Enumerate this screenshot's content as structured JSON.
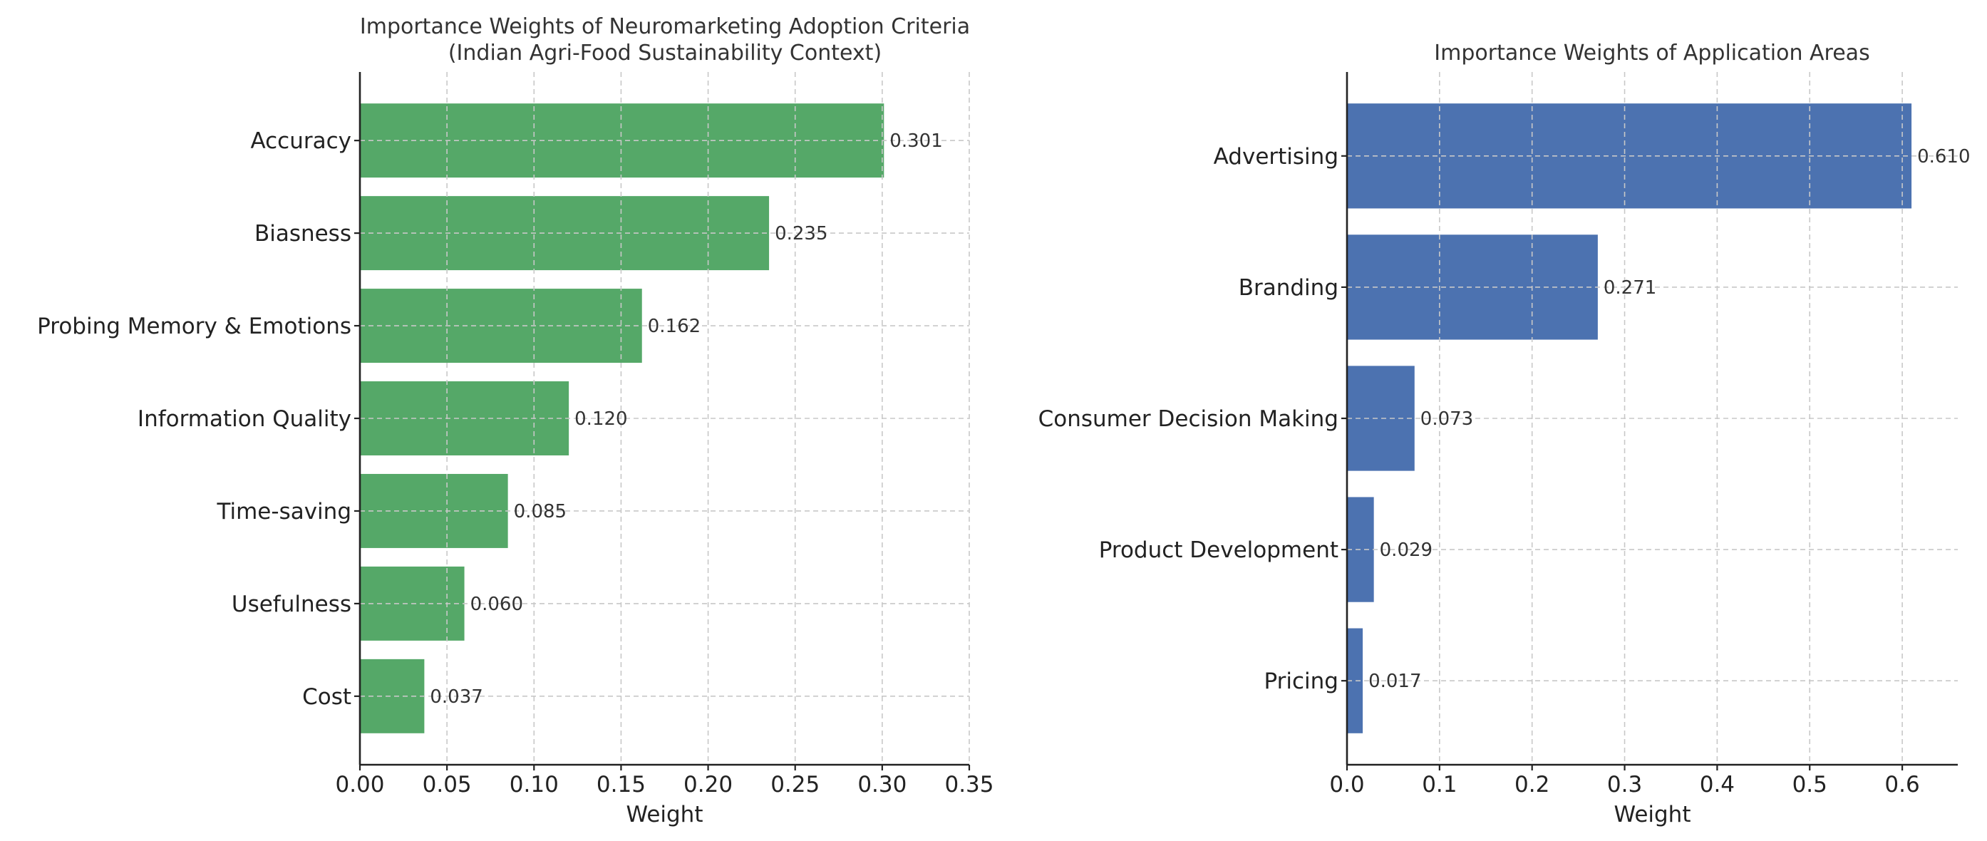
{
  "chart_data": [
    {
      "type": "bar",
      "orientation": "horizontal",
      "title": "Importance Weights of Neuromarketing Adoption Criteria\n(Indian Agri-Food Sustainability Context)",
      "title_lines": [
        "Importance Weights of Neuromarketing Adoption Criteria",
        "(Indian Agri-Food Sustainability Context)"
      ],
      "categories": [
        "Accuracy",
        "Biasness",
        "Probing Memory & Emotions",
        "Information Quality",
        "Time-saving",
        "Usefulness",
        "Cost"
      ],
      "values": [
        0.301,
        0.235,
        0.162,
        0.12,
        0.085,
        0.06,
        0.037
      ],
      "value_labels": [
        "0.301",
        "0.235",
        "0.162",
        "0.120",
        "0.085",
        "0.060",
        "0.037"
      ],
      "xlabel": "Weight",
      "ylabel": "",
      "xlim": [
        0,
        0.35
      ],
      "xticks": [
        0,
        0.05,
        0.1,
        0.15,
        0.2,
        0.25,
        0.3,
        0.35
      ],
      "xtick_labels": [
        "0.00",
        "0.05",
        "0.10",
        "0.15",
        "0.20",
        "0.25",
        "0.30",
        "0.35"
      ],
      "grid": true,
      "color": "#55a868"
    },
    {
      "type": "bar",
      "orientation": "horizontal",
      "title": "Importance Weights of Application Areas",
      "title_lines": [
        "Importance Weights of Application Areas"
      ],
      "categories": [
        "Advertising",
        "Branding",
        "Consumer Decision Making",
        "Product Development",
        "Pricing"
      ],
      "values": [
        0.61,
        0.271,
        0.073,
        0.029,
        0.017
      ],
      "value_labels": [
        "0.610",
        "0.271",
        "0.073",
        "0.029",
        "0.017"
      ],
      "xlabel": "Weight",
      "ylabel": "",
      "xlim": [
        0,
        0.66
      ],
      "xticks": [
        0,
        0.1,
        0.2,
        0.3,
        0.4,
        0.5,
        0.6
      ],
      "xtick_labels": [
        "0.0",
        "0.1",
        "0.2",
        "0.3",
        "0.4",
        "0.5",
        "0.6"
      ],
      "grid": true,
      "color": "#4c72b0"
    }
  ]
}
